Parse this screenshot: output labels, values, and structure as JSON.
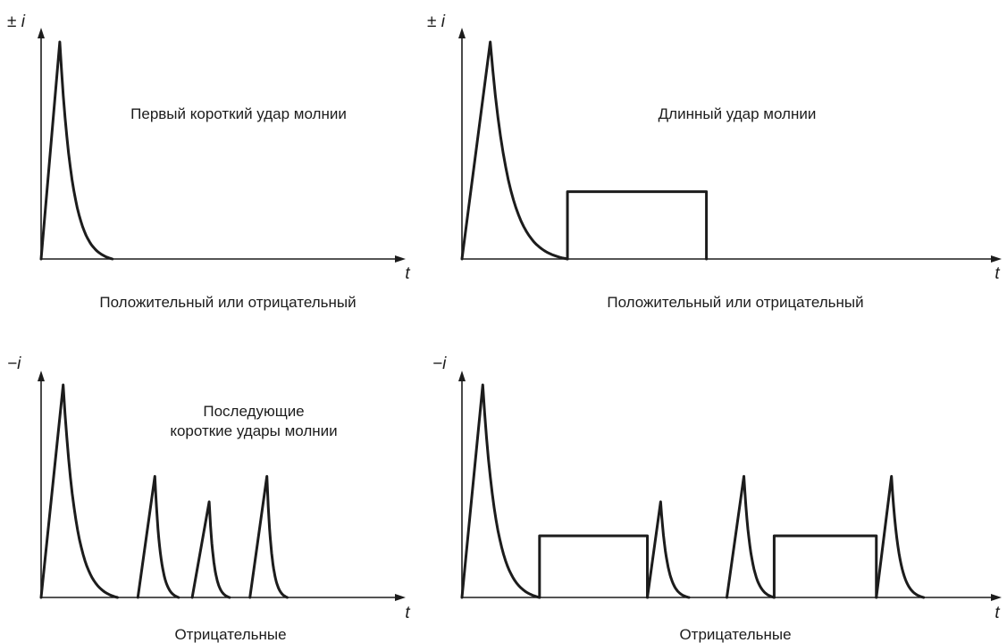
{
  "panels": [
    {
      "id": "top-left",
      "y_label": "± i",
      "t_label": "t",
      "title_lines": [
        "Первый короткий удар молнии"
      ],
      "caption": "Положительный или отрицательный",
      "components": [
        {
          "kind": "impulse",
          "start": 0.0,
          "peak_time": 0.055,
          "end": 0.21,
          "amplitude": 1.0
        }
      ]
    },
    {
      "id": "top-right",
      "y_label": "± i",
      "t_label": "t",
      "title_lines": [
        "Длинный удар молнии"
      ],
      "caption": "Положительный или отрицательный",
      "components": [
        {
          "kind": "impulse",
          "start": 0.0,
          "peak_time": 0.055,
          "end": 0.205,
          "amplitude": 1.0
        },
        {
          "kind": "rect",
          "start": 0.205,
          "end": 0.475,
          "amplitude": 0.31
        }
      ]
    },
    {
      "id": "bottom-left",
      "y_label": "−i",
      "t_label": "t",
      "title_lines": [
        "Последующие",
        "короткие удары молнии"
      ],
      "caption": "Отрицательные",
      "components": [
        {
          "kind": "impulse",
          "start": 0.0,
          "peak_time": 0.065,
          "end": 0.225,
          "amplitude": 1.0
        },
        {
          "kind": "impulse",
          "start": 0.285,
          "peak_time": 0.335,
          "end": 0.405,
          "amplitude": 0.57
        },
        {
          "kind": "impulse",
          "start": 0.445,
          "peak_time": 0.495,
          "end": 0.555,
          "amplitude": 0.45
        },
        {
          "kind": "impulse",
          "start": 0.615,
          "peak_time": 0.665,
          "end": 0.725,
          "amplitude": 0.57
        }
      ]
    },
    {
      "id": "bottom-right",
      "y_label": "−i",
      "t_label": "t",
      "title_lines": [],
      "caption": "Отрицательные",
      "components": [
        {
          "kind": "impulse",
          "start": 0.0,
          "peak_time": 0.055,
          "end": 0.205,
          "amplitude": 1.0
        },
        {
          "kind": "rect",
          "start": 0.205,
          "end": 0.49,
          "amplitude": 0.29
        },
        {
          "kind": "impulse",
          "start": 0.49,
          "peak_time": 0.525,
          "end": 0.6,
          "amplitude": 0.45
        },
        {
          "kind": "impulse",
          "start": 0.7,
          "peak_time": 0.745,
          "end": 0.825,
          "amplitude": 0.57
        },
        {
          "kind": "rect",
          "start": 0.825,
          "end": 1.095,
          "amplitude": 0.29
        },
        {
          "kind": "impulse",
          "start": 1.095,
          "peak_time": 1.135,
          "end": 1.22,
          "amplitude": 0.57
        }
      ]
    }
  ]
}
